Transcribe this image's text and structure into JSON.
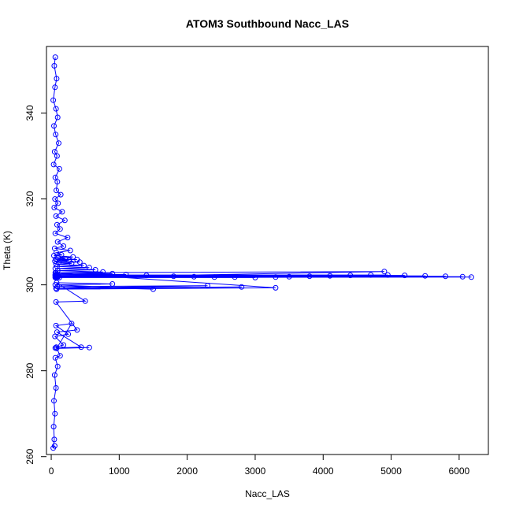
{
  "chart_data": {
    "type": "scatter",
    "title": "ATOM3 Southbound Nacc_LAS",
    "xlabel": "Nacc_LAS",
    "ylabel": "Theta (K)",
    "xlim": [
      -70,
      6430
    ],
    "ylim": [
      260.5,
      355.5
    ],
    "xticks": [
      0,
      1000,
      2000,
      3000,
      4000,
      5000,
      6000
    ],
    "yticks": [
      260,
      280,
      300,
      320,
      340
    ],
    "grid": false,
    "legend": "none",
    "series_color": "#0000ff",
    "marker": "open-circle",
    "connected": true,
    "series": [
      {
        "x": [
          60,
          45,
          80,
          55,
          30,
          70,
          95,
          40,
          65,
          110,
          50,
          85,
          35,
          120,
          60,
          90,
          75,
          140,
          55,
          100,
          45,
          160,
          70,
          200,
          85,
          130,
          60,
          240,
          95,
          180,
          50,
          280,
          75,
          150,
          40,
          320,
          100,
          210,
          65,
          380,
          90,
          260,
          55,
          420,
          110,
          300,
          70,
          480,
          85,
          560,
          60,
          650,
          95,
          760,
          70,
          900,
          80,
          1100,
          60,
          1400,
          90,
          1800,
          70,
          2100,
          100,
          2400,
          80,
          2700,
          60,
          3000,
          120,
          3300,
          90,
          3500,
          70,
          3800,
          100,
          4100,
          80,
          4400,
          60,
          4700,
          90,
          4950,
          70,
          5200,
          100,
          5500,
          80,
          5800,
          60,
          6050,
          90,
          6180,
          75,
          4900,
          60,
          3300,
          80,
          2800,
          70,
          2300,
          90,
          1500,
          60,
          900,
          80,
          500,
          70,
          380,
          85,
          440,
          60,
          560,
          80,
          300,
          70,
          250,
          55,
          180,
          75,
          130,
          60,
          95,
          50,
          70,
          40,
          55,
          35,
          45,
          30,
          50
        ],
        "y": [
          353,
          351,
          348,
          346,
          343,
          341,
          339,
          337,
          335,
          333,
          331,
          330,
          328,
          327,
          325,
          324,
          322,
          321,
          320,
          319,
          318,
          317,
          316,
          315,
          314,
          313,
          312,
          311,
          310,
          309,
          308.5,
          308,
          307.5,
          307,
          306.8,
          306.5,
          306.3,
          306.1,
          306,
          305.9,
          305.8,
          305.7,
          305.5,
          305.3,
          305.2,
          305,
          304.8,
          304.5,
          304.3,
          304,
          303.8,
          303.5,
          303.3,
          303,
          302.8,
          302.6,
          302.5,
          302.4,
          302.3,
          302.2,
          302.1,
          302,
          302,
          301.9,
          301.9,
          301.8,
          301.8,
          301.8,
          301.7,
          301.7,
          301.7,
          301.8,
          301.8,
          301.9,
          301.9,
          302,
          302,
          302.1,
          302.1,
          302.2,
          302.2,
          302.3,
          302.3,
          302.3,
          302.2,
          302.2,
          302.1,
          302.1,
          302,
          302,
          301.9,
          301.9,
          301.8,
          301.8,
          301.7,
          303.1,
          302.8,
          299.3,
          299,
          299.5,
          299.2,
          299.8,
          299.6,
          299,
          300,
          300.2,
          300.5,
          296.2,
          296,
          289.5,
          289,
          285.5,
          285.3,
          285.4,
          285.2,
          291,
          290.5,
          288.5,
          288,
          286,
          285.5,
          283.5,
          283,
          281,
          279,
          276,
          273,
          270,
          267,
          264,
          262,
          262.5
        ]
      }
    ]
  }
}
